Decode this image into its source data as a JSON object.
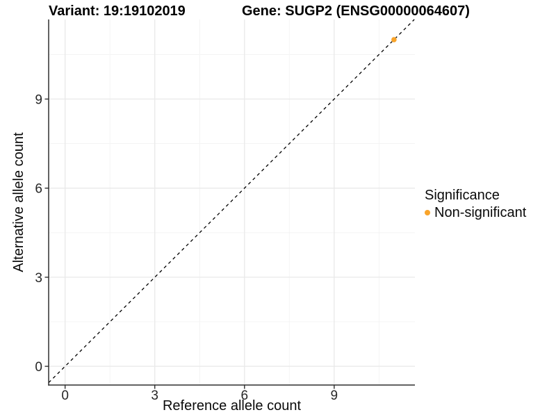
{
  "header": {
    "variant_title": "Variant: 19:19102019",
    "gene_title": "Gene: SUGP2 (ENSG00000064607)"
  },
  "legend": {
    "title": "Significance",
    "items": [
      {
        "label": "Non-significant",
        "color": "#F9A42A"
      }
    ]
  },
  "chart_data": {
    "type": "scatter",
    "title": "Variant: 19:19102019 — Gene: SUGP2 (ENSG00000064607)",
    "xlabel": "Reference allele count",
    "ylabel": "Alternative allele count",
    "xlim": [
      -0.55,
      11.7
    ],
    "ylim": [
      -0.63,
      11.68
    ],
    "x_ticks": [
      0,
      3,
      6,
      9
    ],
    "y_ticks": [
      0,
      3,
      6,
      9
    ],
    "minor_ticks": [
      1.5,
      4.5,
      7.5,
      10.5
    ],
    "grid": "major and minor, light gray on white",
    "legend_position": "right-center",
    "series": [
      {
        "name": "Non-significant",
        "color": "#F9A42A",
        "points": [
          {
            "x": 11,
            "y": 11
          }
        ]
      }
    ],
    "reference_line": {
      "type": "identity",
      "slope": 1,
      "intercept": 0,
      "style": "dashed",
      "color": "#000000"
    }
  },
  "style": {
    "grid_major": "#E9E9E9",
    "grid_minor": "#F3F3F3",
    "axis_line": "#2E2E2E",
    "point_radius": 3.8
  }
}
